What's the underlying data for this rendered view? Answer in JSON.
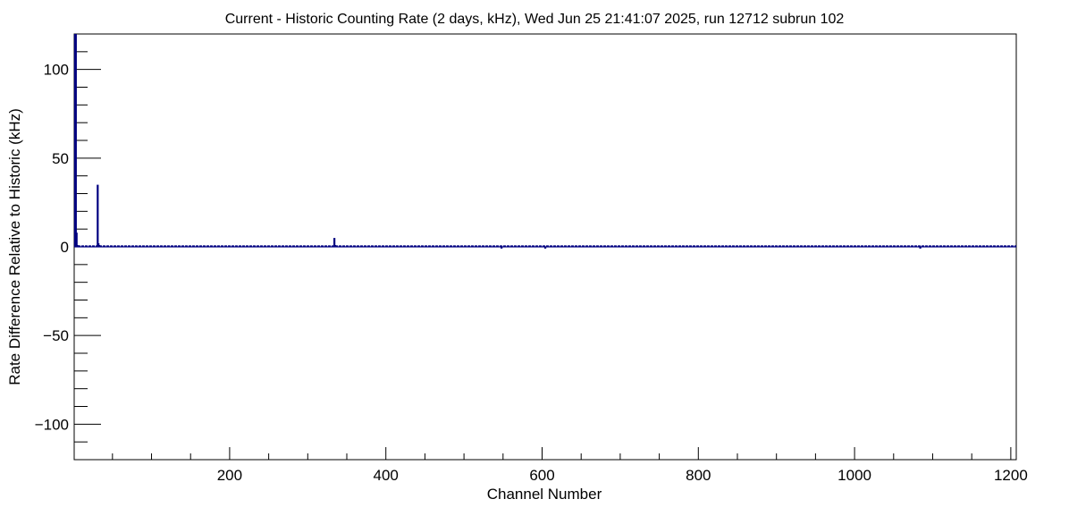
{
  "chart_data": {
    "type": "bar",
    "title": "Current - Historic Counting Rate (2 days, kHz), Wed Jun 25 21:41:07 2025, run 12712 subrun 102",
    "xlabel": "Channel Number",
    "ylabel": "Rate Difference Relative to Historic (kHz)",
    "xlim": [
      1,
      1207
    ],
    "ylim": [
      -120,
      120
    ],
    "xticks": [
      200,
      400,
      600,
      800,
      1000,
      1200
    ],
    "xtick_labels": [
      "200",
      "400",
      "600",
      "800",
      "1000",
      "1200"
    ],
    "yticks": [
      -100,
      -50,
      0,
      50,
      100
    ],
    "ytick_labels": [
      "−100",
      "−50",
      "0",
      "50",
      "100"
    ],
    "grid": false,
    "legend": "none",
    "colors": {
      "series": "#000080",
      "axis": "#000000"
    },
    "series": [
      {
        "points": [
          {
            "x": 2,
            "y": 120
          },
          {
            "x": 3,
            "y": 120
          },
          {
            "x": 4,
            "y": 8
          },
          {
            "x": 5,
            "y": 1
          },
          {
            "x": 31,
            "y": 35
          },
          {
            "x": 32,
            "y": 2
          },
          {
            "x": 33,
            "y": 1
          },
          {
            "x": 334,
            "y": 5
          },
          {
            "x": 335,
            "y": 1
          },
          {
            "x": 548,
            "y": -1
          },
          {
            "x": 604,
            "y": -1
          },
          {
            "x": 1084,
            "y": -1
          }
        ],
        "baseline_value": 0.5,
        "x_range": [
          1,
          1207
        ]
      }
    ]
  }
}
